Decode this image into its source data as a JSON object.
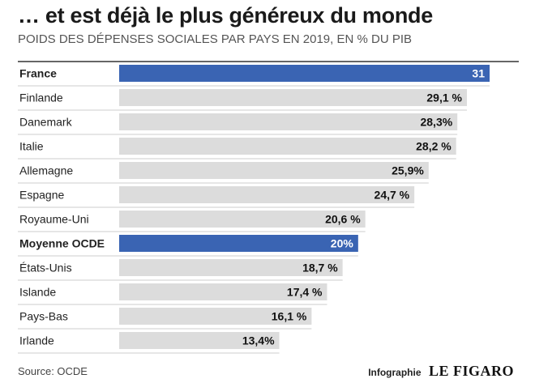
{
  "title": "… et est déjà le plus généreux du monde",
  "subtitle": "POIDS DES DÉPENSES SOCIALES PAR PAYS EN 2019, EN % DU PIB",
  "source": "Source: OCDE",
  "credit": {
    "label": "Infographie",
    "logo": "LE FIGARO"
  },
  "colors": {
    "highlight": "#3a64b3",
    "bar": "#dcdcdc",
    "separator": "#333333",
    "rowline": "#bdbdbd"
  },
  "chart_data": {
    "type": "bar",
    "orientation": "horizontal",
    "categories": [
      "France",
      "Finlande",
      "Danemark",
      "Italie",
      "Allemagne",
      "Espagne",
      "Royaume-Uni",
      "Moyenne OCDE",
      "États-Unis",
      "Islande",
      "Pays-Bas",
      "Irlande"
    ],
    "values": [
      31,
      29.1,
      28.3,
      28.2,
      25.9,
      24.7,
      20.6,
      20,
      18.7,
      17.4,
      16.1,
      13.4
    ],
    "value_labels": [
      "31",
      "29,1 %",
      "28,3%",
      "28,2 %",
      "25,9%",
      "24,7 %",
      "20,6 %",
      "20%",
      "18,7 %",
      "17,4 %",
      "16,1 %",
      "13,4%"
    ],
    "highlighted": [
      "France",
      "Moyenne OCDE"
    ],
    "xlim": [
      0,
      31
    ],
    "grid": false,
    "legend": "none"
  }
}
